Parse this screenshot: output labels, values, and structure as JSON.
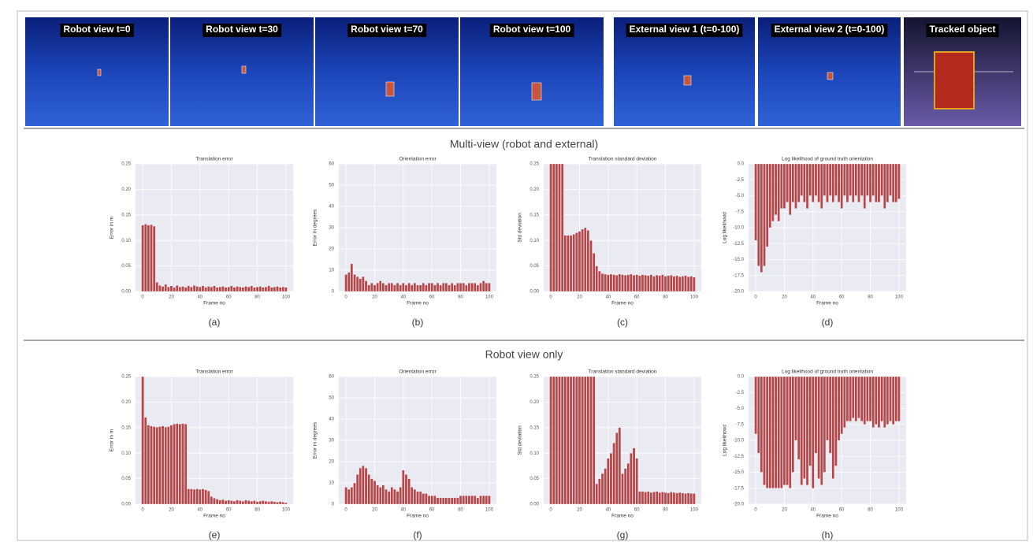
{
  "images": [
    {
      "label": "Robot view t=0"
    },
    {
      "label": "Robot view t=30"
    },
    {
      "label": "Robot view t=70"
    },
    {
      "label": "Robot view t=100"
    },
    {
      "label": "External view 1 (t=0-100)"
    },
    {
      "label": "External view 2 (t=0-100)"
    },
    {
      "label": "Tracked object"
    }
  ],
  "sections": [
    {
      "title": "Multi-view (robot and external)"
    },
    {
      "title": "Robot view only"
    }
  ],
  "chart_data": [
    {
      "type": "bar",
      "caption": "(a)",
      "title": "Translation error",
      "xlabel": "Frame no",
      "ylabel": "Error in m",
      "color": "#b5474b",
      "grid": true,
      "x": [
        0,
        2,
        4,
        6,
        8,
        10,
        12,
        14,
        16,
        18,
        20,
        22,
        24,
        26,
        28,
        30,
        32,
        34,
        36,
        38,
        40,
        42,
        44,
        46,
        48,
        50,
        52,
        54,
        56,
        58,
        60,
        62,
        64,
        66,
        68,
        70,
        72,
        74,
        76,
        78,
        80,
        82,
        84,
        86,
        88,
        90,
        92,
        94,
        96,
        98,
        100
      ],
      "values": [
        0.13,
        0.132,
        0.13,
        0.131,
        0.128,
        0.018,
        0.012,
        0.01,
        0.014,
        0.009,
        0.011,
        0.008,
        0.012,
        0.009,
        0.01,
        0.008,
        0.011,
        0.009,
        0.012,
        0.01,
        0.009,
        0.011,
        0.008,
        0.01,
        0.009,
        0.011,
        0.008,
        0.009,
        0.01,
        0.008,
        0.009,
        0.011,
        0.008,
        0.01,
        0.009,
        0.008,
        0.01,
        0.009,
        0.011,
        0.008,
        0.009,
        0.01,
        0.008,
        0.009,
        0.011,
        0.008,
        0.009,
        0.01,
        0.008,
        0.009,
        0.008
      ],
      "xlim": [
        -5,
        105
      ],
      "xticks": [
        0,
        20,
        40,
        60,
        80,
        100
      ],
      "ylim": [
        0,
        0.25
      ],
      "yticks": [
        {
          "value": 0,
          "label": "0.00"
        },
        0.05,
        {
          "value": 0.1,
          "label": "0.10"
        },
        0.15,
        {
          "value": 0.2,
          "label": "0.20"
        },
        0.25
      ]
    },
    {
      "type": "bar",
      "caption": "(b)",
      "title": "Orientation error",
      "xlabel": "Frame no",
      "ylabel": "Error in degrees",
      "color": "#b5474b",
      "grid": true,
      "x": [
        0,
        2,
        4,
        6,
        8,
        10,
        12,
        14,
        16,
        18,
        20,
        22,
        24,
        26,
        28,
        30,
        32,
        34,
        36,
        38,
        40,
        42,
        44,
        46,
        48,
        50,
        52,
        54,
        56,
        58,
        60,
        62,
        64,
        66,
        68,
        70,
        72,
        74,
        76,
        78,
        80,
        82,
        84,
        86,
        88,
        90,
        92,
        94,
        96,
        98,
        100
      ],
      "values": [
        8,
        9,
        13,
        8,
        7,
        6,
        7,
        5,
        3,
        4,
        3,
        4,
        5,
        4,
        3,
        4,
        4,
        3,
        4,
        3,
        4,
        3,
        4,
        3,
        4,
        3,
        3,
        4,
        3,
        4,
        4,
        3,
        4,
        3,
        4,
        4,
        3,
        4,
        3,
        4,
        4,
        4,
        3,
        4,
        4,
        4,
        3,
        4,
        5,
        4,
        4
      ],
      "xlim": [
        -5,
        105
      ],
      "xticks": [
        0,
        20,
        40,
        60,
        80,
        100
      ],
      "ylim": [
        0,
        60
      ],
      "yticks": [
        0,
        10,
        20,
        30,
        40,
        50,
        60
      ]
    },
    {
      "type": "bar",
      "caption": "(c)",
      "title": "Translation standard deviation",
      "xlabel": "Frame no",
      "ylabel": "Std deviation",
      "color": "#b5474b",
      "grid": true,
      "x": [
        0,
        2,
        4,
        6,
        8,
        10,
        12,
        14,
        16,
        18,
        20,
        22,
        24,
        26,
        28,
        30,
        32,
        34,
        36,
        38,
        40,
        42,
        44,
        46,
        48,
        50,
        52,
        54,
        56,
        58,
        60,
        62,
        64,
        66,
        68,
        70,
        72,
        74,
        76,
        78,
        80,
        82,
        84,
        86,
        88,
        90,
        92,
        94,
        96,
        98,
        100
      ],
      "values": [
        0.25,
        0.25,
        0.25,
        0.25,
        0.25,
        0.11,
        0.11,
        0.11,
        0.112,
        0.115,
        0.118,
        0.122,
        0.125,
        0.12,
        0.1,
        0.075,
        0.05,
        0.04,
        0.035,
        0.034,
        0.033,
        0.034,
        0.033,
        0.032,
        0.034,
        0.033,
        0.032,
        0.033,
        0.034,
        0.032,
        0.033,
        0.031,
        0.033,
        0.032,
        0.031,
        0.033,
        0.03,
        0.032,
        0.031,
        0.033,
        0.03,
        0.031,
        0.032,
        0.03,
        0.031,
        0.029,
        0.03,
        0.031,
        0.029,
        0.03,
        0.028
      ],
      "xlim": [
        -5,
        105
      ],
      "xticks": [
        0,
        20,
        40,
        60,
        80,
        100
      ],
      "ylim": [
        0,
        0.25
      ],
      "yticks": [
        {
          "value": 0,
          "label": "0.00"
        },
        0.05,
        {
          "value": 0.1,
          "label": "0.10"
        },
        0.15,
        {
          "value": 0.2,
          "label": "0.20"
        },
        0.25
      ]
    },
    {
      "type": "bar",
      "caption": "(d)",
      "title": "Log likelihood of ground truth orientation",
      "xlabel": "Frame no",
      "ylabel": "Log likelihood",
      "color": "#b5474b",
      "grid": true,
      "x": [
        0,
        2,
        4,
        6,
        8,
        10,
        12,
        14,
        16,
        18,
        20,
        22,
        24,
        26,
        28,
        30,
        32,
        34,
        36,
        38,
        40,
        42,
        44,
        46,
        48,
        50,
        52,
        54,
        56,
        58,
        60,
        62,
        64,
        66,
        68,
        70,
        72,
        74,
        76,
        78,
        80,
        82,
        84,
        86,
        88,
        90,
        92,
        94,
        96,
        98,
        100
      ],
      "values": [
        -12,
        -16,
        -17,
        -16,
        -13,
        -10,
        -9,
        -8,
        -9,
        -7,
        -7,
        -6,
        -8,
        -6,
        -7,
        -6,
        -5,
        -6,
        -7,
        -5,
        -6,
        -5,
        -6,
        -7,
        -5,
        -6,
        -5,
        -6,
        -5,
        -6,
        -7,
        -5,
        -6,
        -5,
        -6,
        -5,
        -6,
        -5,
        -7,
        -5,
        -6,
        -5,
        -6,
        -6,
        -5,
        -7,
        -6,
        -5,
        -6,
        -6,
        -5.5
      ],
      "xlim": [
        -5,
        105
      ],
      "xticks": [
        0,
        20,
        40,
        60,
        80,
        100
      ],
      "ylim": [
        -20,
        0
      ],
      "yticks": [
        {
          "value": -20,
          "label": "-20.0"
        },
        -17.5,
        {
          "value": -15,
          "label": "-15.0"
        },
        -12.5,
        {
          "value": -10,
          "label": "-10.0"
        },
        -7.5,
        {
          "value": -5,
          "label": "-5.0"
        },
        -2.5,
        {
          "value": 0,
          "label": "0.0"
        }
      ]
    },
    {
      "type": "bar",
      "caption": "(e)",
      "title": "Translation error",
      "xlabel": "Frame no",
      "ylabel": "Error in m",
      "color": "#b5474b",
      "grid": true,
      "x": [
        0,
        2,
        4,
        6,
        8,
        10,
        12,
        14,
        16,
        18,
        20,
        22,
        24,
        26,
        28,
        30,
        32,
        34,
        36,
        38,
        40,
        42,
        44,
        46,
        48,
        50,
        52,
        54,
        56,
        58,
        60,
        62,
        64,
        66,
        68,
        70,
        72,
        74,
        76,
        78,
        80,
        82,
        84,
        86,
        88,
        90,
        92,
        94,
        96,
        98,
        100
      ],
      "values": [
        0.25,
        0.17,
        0.155,
        0.153,
        0.152,
        0.151,
        0.152,
        0.153,
        0.151,
        0.152,
        0.155,
        0.157,
        0.158,
        0.157,
        0.158,
        0.157,
        0.03,
        0.03,
        0.029,
        0.03,
        0.029,
        0.03,
        0.028,
        0.026,
        0.015,
        0.012,
        0.01,
        0.008,
        0.009,
        0.007,
        0.008,
        0.007,
        0.006,
        0.008,
        0.007,
        0.006,
        0.008,
        0.007,
        0.006,
        0.007,
        0.005,
        0.006,
        0.007,
        0.006,
        0.005,
        0.006,
        0.005,
        0.004,
        0.005,
        0.004,
        0.003
      ],
      "xlim": [
        -5,
        105
      ],
      "xticks": [
        0,
        20,
        40,
        60,
        80,
        100
      ],
      "ylim": [
        0,
        0.25
      ],
      "yticks": [
        {
          "value": 0,
          "label": "0.00"
        },
        0.05,
        {
          "value": 0.1,
          "label": "0.10"
        },
        0.15,
        {
          "value": 0.2,
          "label": "0.20"
        },
        0.25
      ]
    },
    {
      "type": "bar",
      "caption": "(f)",
      "title": "Orientation error",
      "xlabel": "Frame no",
      "ylabel": "Error in degrees",
      "color": "#b5474b",
      "grid": true,
      "x": [
        0,
        2,
        4,
        6,
        8,
        10,
        12,
        14,
        16,
        18,
        20,
        22,
        24,
        26,
        28,
        30,
        32,
        34,
        36,
        38,
        40,
        42,
        44,
        46,
        48,
        50,
        52,
        54,
        56,
        58,
        60,
        62,
        64,
        66,
        68,
        70,
        72,
        74,
        76,
        78,
        80,
        82,
        84,
        86,
        88,
        90,
        92,
        94,
        96,
        98,
        100
      ],
      "values": [
        8,
        7,
        8,
        10,
        14,
        17,
        18,
        17,
        14,
        12,
        11,
        9,
        8,
        9,
        7,
        6,
        8,
        7,
        6,
        8,
        16,
        14,
        12,
        8,
        7,
        6,
        6,
        5,
        5,
        4,
        4,
        4,
        3,
        3,
        3,
        3,
        3,
        3,
        3,
        3,
        4,
        4,
        4,
        4,
        4,
        4,
        3,
        4,
        4,
        4,
        4
      ],
      "xlim": [
        -5,
        105
      ],
      "xticks": [
        0,
        20,
        40,
        60,
        80,
        100
      ],
      "ylim": [
        0,
        60
      ],
      "yticks": [
        0,
        10,
        20,
        30,
        40,
        50,
        60
      ]
    },
    {
      "type": "bar",
      "caption": "(g)",
      "title": "Translation standard deviation",
      "xlabel": "Frame no",
      "ylabel": "Std deviation",
      "color": "#b5474b",
      "grid": true,
      "x": [
        0,
        2,
        4,
        6,
        8,
        10,
        12,
        14,
        16,
        18,
        20,
        22,
        24,
        26,
        28,
        30,
        32,
        34,
        36,
        38,
        40,
        42,
        44,
        46,
        48,
        50,
        52,
        54,
        56,
        58,
        60,
        62,
        64,
        66,
        68,
        70,
        72,
        74,
        76,
        78,
        80,
        82,
        84,
        86,
        88,
        90,
        92,
        94,
        96,
        98,
        100
      ],
      "values": [
        0.25,
        0.25,
        0.25,
        0.25,
        0.25,
        0.25,
        0.25,
        0.25,
        0.25,
        0.25,
        0.25,
        0.25,
        0.25,
        0.25,
        0.25,
        0.25,
        0.04,
        0.05,
        0.06,
        0.07,
        0.09,
        0.1,
        0.12,
        0.14,
        0.15,
        0.06,
        0.07,
        0.08,
        0.1,
        0.11,
        0.09,
        0.025,
        0.025,
        0.024,
        0.025,
        0.023,
        0.024,
        0.025,
        0.023,
        0.024,
        0.023,
        0.022,
        0.024,
        0.023,
        0.022,
        0.023,
        0.022,
        0.021,
        0.022,
        0.021,
        0.021
      ],
      "xlim": [
        -5,
        105
      ],
      "xticks": [
        0,
        20,
        40,
        60,
        80,
        100
      ],
      "ylim": [
        0,
        0.25
      ],
      "yticks": [
        {
          "value": 0,
          "label": "0.00"
        },
        0.05,
        {
          "value": 0.1,
          "label": "0.10"
        },
        0.15,
        {
          "value": 0.2,
          "label": "0.20"
        },
        0.25
      ]
    },
    {
      "type": "bar",
      "caption": "(h)",
      "title": "Log likelihood of ground truth orientation",
      "xlabel": "Frame no",
      "ylabel": "Log likelihood",
      "color": "#b5474b",
      "grid": true,
      "x": [
        0,
        2,
        4,
        6,
        8,
        10,
        12,
        14,
        16,
        18,
        20,
        22,
        24,
        26,
        28,
        30,
        32,
        34,
        36,
        38,
        40,
        42,
        44,
        46,
        48,
        50,
        52,
        54,
        56,
        58,
        60,
        62,
        64,
        66,
        68,
        70,
        72,
        74,
        76,
        78,
        80,
        82,
        84,
        86,
        88,
        90,
        92,
        94,
        96,
        98,
        100
      ],
      "values": [
        -9,
        -12,
        -15,
        -17,
        -17.5,
        -17.5,
        -17.5,
        -17.5,
        -17.5,
        -17.5,
        -17,
        -17,
        -17.5,
        -15,
        -10,
        -13,
        -17,
        -16,
        -17,
        -14,
        -17.5,
        -12,
        -16,
        -17,
        -15,
        -10,
        -12,
        -16,
        -14,
        -10,
        -9,
        -8,
        -7,
        -7,
        -6.5,
        -7,
        -6.5,
        -7,
        -7.5,
        -7,
        -7,
        -8,
        -7.5,
        -8,
        -7,
        -8,
        -7.5,
        -7,
        -7.5,
        -7,
        -7
      ],
      "xlim": [
        -5,
        105
      ],
      "xticks": [
        0,
        20,
        40,
        60,
        80,
        100
      ],
      "ylim": [
        -20,
        0
      ],
      "yticks": [
        {
          "value": -20,
          "label": "-20.0"
        },
        -17.5,
        {
          "value": -15,
          "label": "-15.0"
        },
        -12.5,
        {
          "value": -10,
          "label": "-10.0"
        },
        -7.5,
        {
          "value": -5,
          "label": "-5.0"
        },
        -2.5,
        {
          "value": 0,
          "label": "0.0"
        }
      ]
    }
  ]
}
